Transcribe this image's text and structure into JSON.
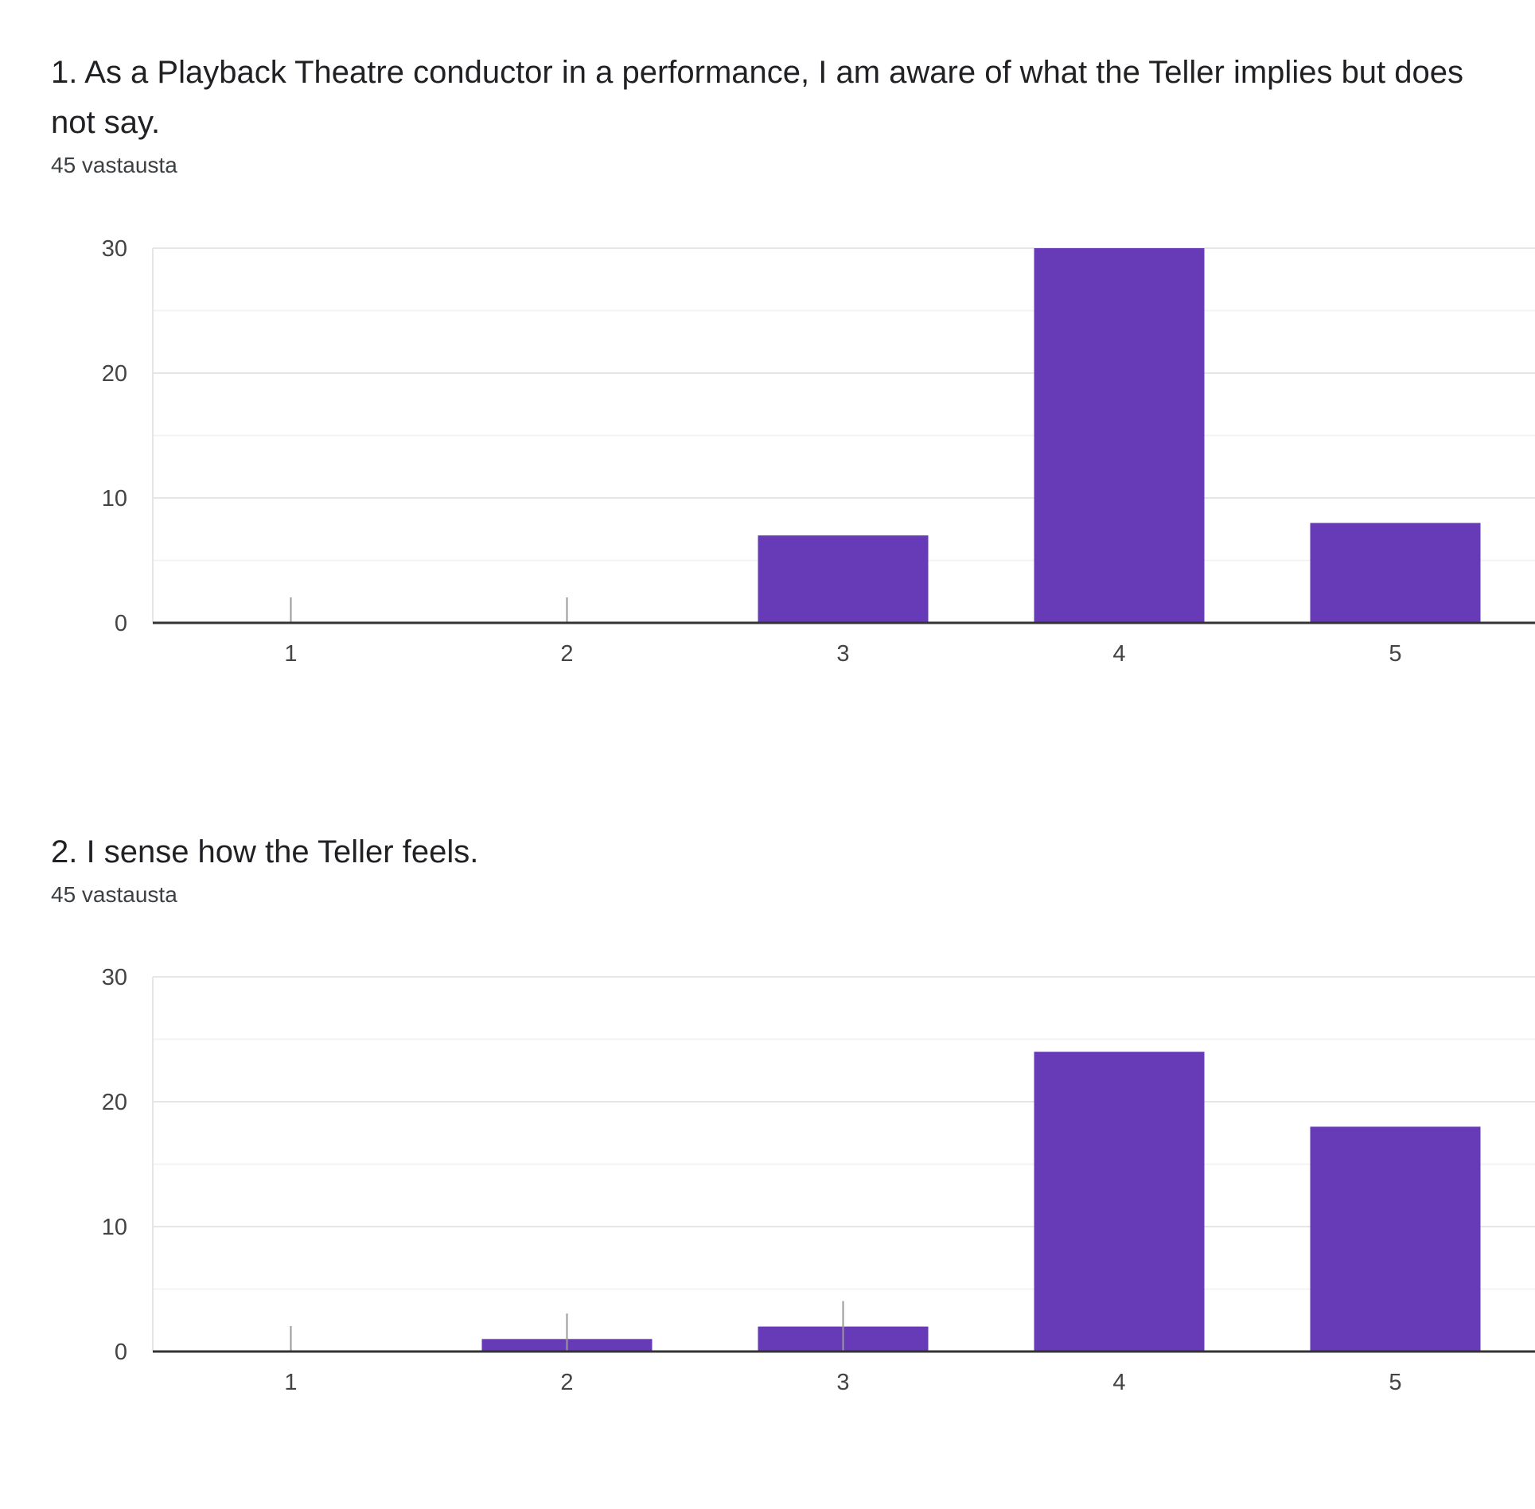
{
  "questions": [
    {
      "title": "1. As a Playback Theatre conductor in a performance, I am aware of what the Teller implies but does not say.",
      "responses": "45 vastausta"
    },
    {
      "title": "2. I sense how the Teller feels.",
      "responses": "45 vastausta"
    }
  ],
  "colors": {
    "bar": "#673ab7",
    "gridline": "#e6e6e6",
    "minor_gridline": "#f3f3f3",
    "axis": "#333333",
    "tick_mark": "#999999"
  },
  "chart_data": [
    {
      "type": "bar",
      "categories": [
        "1",
        "2",
        "3",
        "4",
        "5"
      ],
      "values": [
        0,
        0,
        7,
        30,
        8
      ],
      "title": "",
      "xlabel": "",
      "ylabel": "",
      "ylim": [
        0,
        30
      ],
      "yticks": [
        "0",
        "10",
        "20",
        "30"
      ],
      "grid": true
    },
    {
      "type": "bar",
      "categories": [
        "1",
        "2",
        "3",
        "4",
        "5"
      ],
      "values": [
        0,
        1,
        2,
        24,
        18
      ],
      "title": "",
      "xlabel": "",
      "ylabel": "",
      "ylim": [
        0,
        30
      ],
      "yticks": [
        "0",
        "10",
        "20",
        "30"
      ],
      "grid": true
    }
  ]
}
